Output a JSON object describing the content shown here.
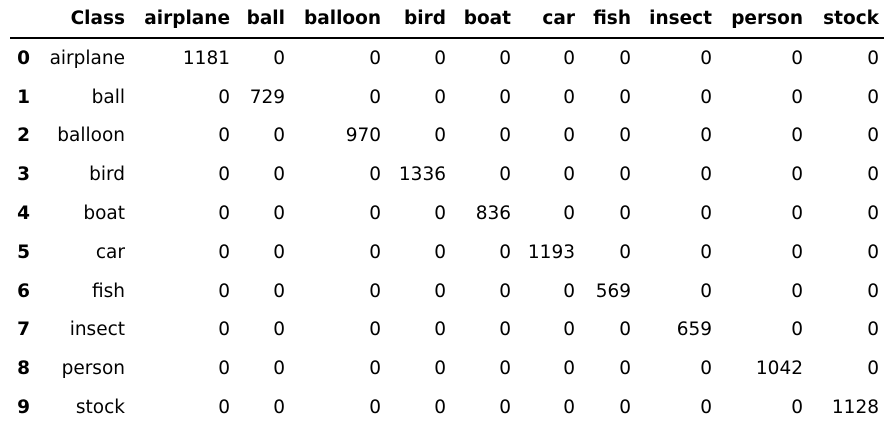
{
  "table": {
    "index_header": "",
    "columns": [
      "Class",
      "airplane",
      "ball",
      "balloon",
      "bird",
      "boat",
      "car",
      "fish",
      "insect",
      "person",
      "stock"
    ],
    "rows": [
      {
        "index": "0",
        "cells": [
          "airplane",
          "1181",
          "0",
          "0",
          "0",
          "0",
          "0",
          "0",
          "0",
          "0",
          "0"
        ]
      },
      {
        "index": "1",
        "cells": [
          "ball",
          "0",
          "729",
          "0",
          "0",
          "0",
          "0",
          "0",
          "0",
          "0",
          "0"
        ]
      },
      {
        "index": "2",
        "cells": [
          "balloon",
          "0",
          "0",
          "970",
          "0",
          "0",
          "0",
          "0",
          "0",
          "0",
          "0"
        ]
      },
      {
        "index": "3",
        "cells": [
          "bird",
          "0",
          "0",
          "0",
          "1336",
          "0",
          "0",
          "0",
          "0",
          "0",
          "0"
        ]
      },
      {
        "index": "4",
        "cells": [
          "boat",
          "0",
          "0",
          "0",
          "0",
          "836",
          "0",
          "0",
          "0",
          "0",
          "0"
        ]
      },
      {
        "index": "5",
        "cells": [
          "car",
          "0",
          "0",
          "0",
          "0",
          "0",
          "1193",
          "0",
          "0",
          "0",
          "0"
        ]
      },
      {
        "index": "6",
        "cells": [
          "fish",
          "0",
          "0",
          "0",
          "0",
          "0",
          "0",
          "569",
          "0",
          "0",
          "0"
        ]
      },
      {
        "index": "7",
        "cells": [
          "insect",
          "0",
          "0",
          "0",
          "0",
          "0",
          "0",
          "0",
          "659",
          "0",
          "0"
        ]
      },
      {
        "index": "8",
        "cells": [
          "person",
          "0",
          "0",
          "0",
          "0",
          "0",
          "0",
          "0",
          "0",
          "1042",
          "0"
        ]
      },
      {
        "index": "9",
        "cells": [
          "stock",
          "0",
          "0",
          "0",
          "0",
          "0",
          "0",
          "0",
          "0",
          "0",
          "1128"
        ]
      }
    ]
  }
}
